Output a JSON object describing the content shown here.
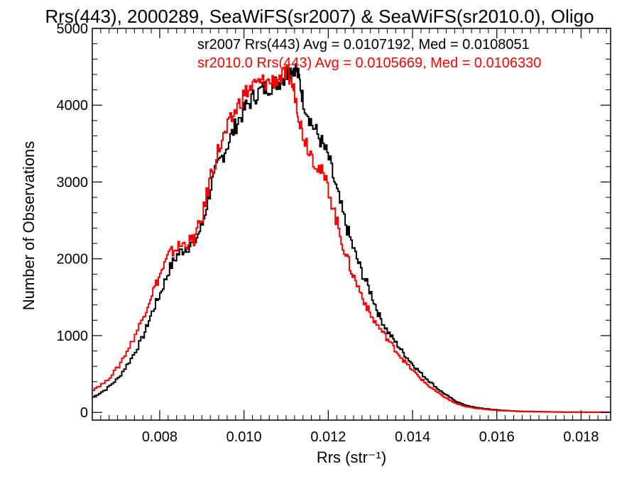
{
  "chart_data": {
    "type": "line",
    "step": true,
    "title": "Rrs(443), 2000289, SeaWiFS(sr2007) & SeaWiFS(sr2010.0), Oligo",
    "xlabel": "Rrs (str⁻¹)",
    "ylabel": "Number of Observations",
    "xlim": [
      0.0064,
      0.0187
    ],
    "ylim": [
      -100,
      5000
    ],
    "xticks": [
      0.008,
      0.01,
      0.012,
      0.014,
      0.016,
      0.018
    ],
    "xtick_labels": [
      "0.008",
      "0.010",
      "0.012",
      "0.014",
      "0.016",
      "0.018"
    ],
    "yticks": [
      0,
      1000,
      2000,
      3000,
      4000,
      5000
    ],
    "ytick_labels": [
      "0",
      "1000",
      "2000",
      "3000",
      "4000",
      "5000"
    ],
    "legend_position": "top-right",
    "series": [
      {
        "label": "sr2007 Rrs(443) Avg = 0.0107192, Med = 0.0108051",
        "color": "#000000",
        "x": [
          0.0064,
          0.0067,
          0.007,
          0.0073,
          0.0076,
          0.0078,
          0.008,
          0.0082,
          0.0084,
          0.0086,
          0.0088,
          0.009,
          0.0092,
          0.0094,
          0.0096,
          0.0098,
          0.01,
          0.0102,
          0.0104,
          0.0106,
          0.0108,
          0.011,
          0.0111,
          0.0112,
          0.0113,
          0.0114,
          0.0116,
          0.0118,
          0.012,
          0.0122,
          0.0124,
          0.0126,
          0.0128,
          0.013,
          0.0132,
          0.0134,
          0.0136,
          0.0138,
          0.014,
          0.0142,
          0.0144,
          0.0146,
          0.0148,
          0.015,
          0.0152,
          0.0155,
          0.016,
          0.0165,
          0.017,
          0.0175,
          0.018,
          0.0187
        ],
        "y": [
          200,
          300,
          450,
          700,
          1000,
          1300,
          1550,
          1850,
          2050,
          2150,
          2200,
          2450,
          2950,
          3250,
          3500,
          3750,
          3950,
          4100,
          4200,
          4250,
          4300,
          4400,
          4450,
          4500,
          4350,
          4050,
          3750,
          3550,
          3300,
          2850,
          2450,
          2100,
          1800,
          1550,
          1250,
          1050,
          900,
          750,
          620,
          500,
          400,
          300,
          220,
          150,
          100,
          60,
          30,
          15,
          10,
          5,
          3,
          2
        ]
      },
      {
        "label": "sr2010.0 Rrs(443) Avg = 0.0105669, Med = 0.0106330",
        "color": "#ff0000",
        "x": [
          0.0064,
          0.0067,
          0.007,
          0.0073,
          0.0076,
          0.0078,
          0.008,
          0.0082,
          0.0084,
          0.0086,
          0.0088,
          0.009,
          0.0092,
          0.0094,
          0.0096,
          0.0098,
          0.01,
          0.0102,
          0.0104,
          0.0106,
          0.0108,
          0.011,
          0.0111,
          0.0112,
          0.0113,
          0.0114,
          0.0116,
          0.0118,
          0.012,
          0.0122,
          0.0124,
          0.0126,
          0.0128,
          0.013,
          0.0132,
          0.0134,
          0.0136,
          0.0138,
          0.014,
          0.0142,
          0.0144,
          0.0146,
          0.0148,
          0.015,
          0.0152,
          0.0155,
          0.016,
          0.0165,
          0.017,
          0.0175,
          0.018,
          0.0187
        ],
        "y": [
          300,
          400,
          600,
          900,
          1250,
          1550,
          1800,
          2050,
          2150,
          2200,
          2250,
          2550,
          3100,
          3450,
          3700,
          3950,
          4150,
          4250,
          4300,
          4300,
          4350,
          4400,
          4350,
          4150,
          3850,
          3600,
          3350,
          3150,
          2900,
          2450,
          2050,
          1750,
          1500,
          1250,
          1100,
          950,
          800,
          660,
          540,
          430,
          330,
          250,
          180,
          120,
          80,
          50,
          25,
          12,
          8,
          4,
          3,
          2
        ]
      }
    ]
  }
}
